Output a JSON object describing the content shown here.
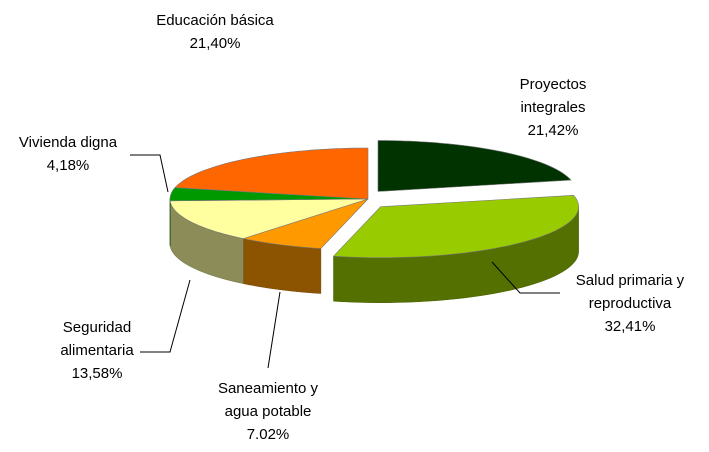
{
  "chart_data": {
    "type": "pie3d",
    "categories": [
      "Proyectos integrales",
      "Salud primaria y reproductiva",
      "Saneamiento y agua potable",
      "Seguridad alimentaria",
      "Vivienda digna",
      "Educación básica"
    ],
    "values": [
      21.42,
      32.41,
      7.02,
      13.58,
      4.18,
      21.4
    ],
    "value_labels": [
      "21,42%",
      "32,41%",
      "7.02%",
      "13,58%",
      "4,18%",
      "21,40%"
    ],
    "colors": [
      "#003300",
      "#99cc00",
      "#ff9900",
      "#ffffa0",
      "#009900",
      "#ff6600"
    ]
  }
}
